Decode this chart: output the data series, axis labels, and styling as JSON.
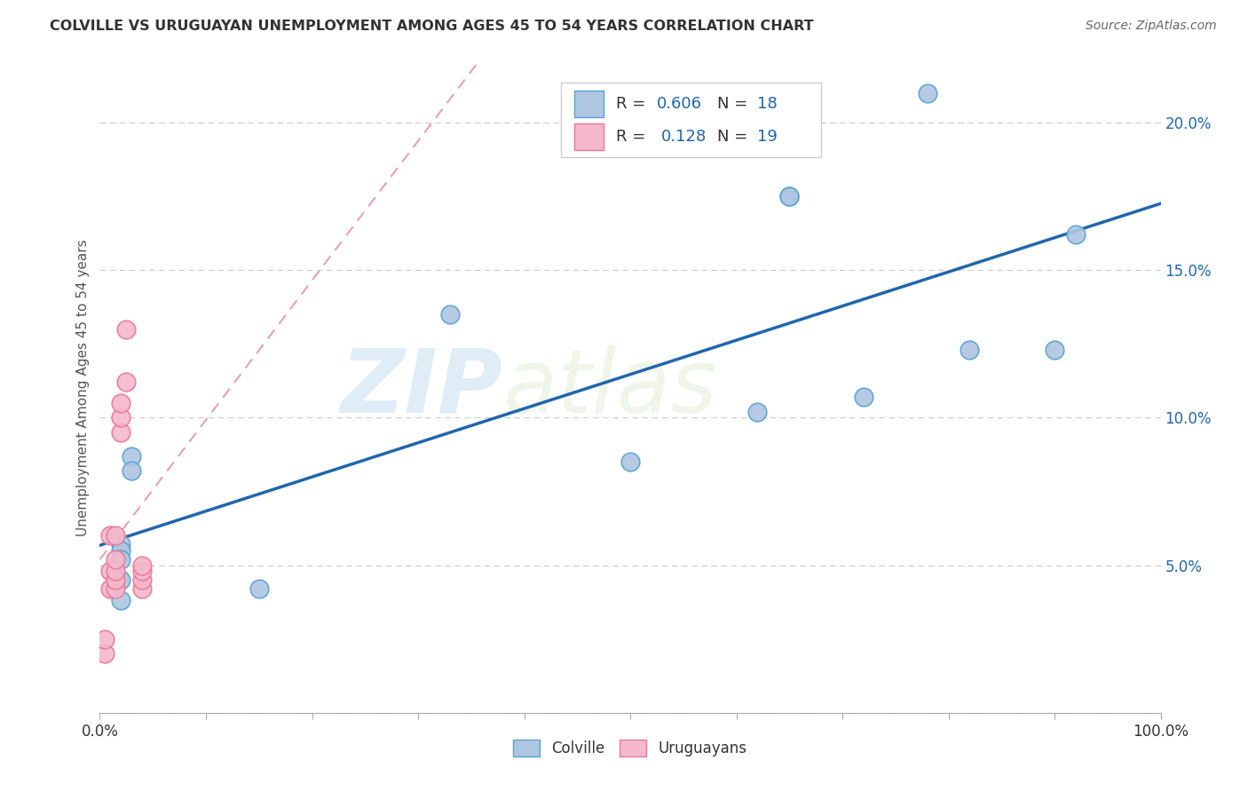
{
  "title": "COLVILLE VS URUGUAYAN UNEMPLOYMENT AMONG AGES 45 TO 54 YEARS CORRELATION CHART",
  "source": "Source: ZipAtlas.com",
  "ylabel": "Unemployment Among Ages 45 to 54 years",
  "xlim": [
    0,
    1.0
  ],
  "ylim": [
    0,
    0.22
  ],
  "xticks": [
    0.0,
    0.1,
    0.2,
    0.3,
    0.4,
    0.5,
    0.6,
    0.7,
    0.8,
    0.9,
    1.0
  ],
  "yticks": [
    0.0,
    0.05,
    0.1,
    0.15,
    0.2
  ],
  "colville_x": [
    0.02,
    0.02,
    0.02,
    0.02,
    0.02,
    0.03,
    0.03,
    0.15,
    0.33,
    0.5,
    0.62,
    0.65,
    0.72,
    0.78,
    0.82,
    0.9,
    0.92,
    0.65
  ],
  "colville_y": [
    0.057,
    0.055,
    0.052,
    0.045,
    0.038,
    0.087,
    0.082,
    0.042,
    0.135,
    0.085,
    0.102,
    0.175,
    0.107,
    0.21,
    0.123,
    0.123,
    0.162,
    0.175
  ],
  "uruguayan_x": [
    0.005,
    0.005,
    0.01,
    0.01,
    0.01,
    0.015,
    0.015,
    0.015,
    0.015,
    0.015,
    0.02,
    0.02,
    0.02,
    0.025,
    0.025,
    0.04,
    0.04,
    0.04,
    0.04
  ],
  "uruguayan_y": [
    0.02,
    0.025,
    0.042,
    0.048,
    0.06,
    0.042,
    0.045,
    0.048,
    0.052,
    0.06,
    0.095,
    0.1,
    0.105,
    0.112,
    0.13,
    0.042,
    0.045,
    0.048,
    0.05
  ],
  "colville_face_color": "#aec6e0",
  "colville_edge_color": "#5a9fd4",
  "uruguayan_face_color": "#f4b8cb",
  "uruguayan_edge_color": "#e87898",
  "colville_line_color": "#2166ac",
  "uruguayan_line_color": "#e8a0b0",
  "R_colville": 0.606,
  "N_colville": 18,
  "R_uruguayan": 0.128,
  "N_uruguayan": 19,
  "watermark_zip": "ZIP",
  "watermark_atlas": "atlas",
  "background_color": "#ffffff",
  "grid_color": "#cccccc",
  "tick_color": "#2166ac",
  "title_color": "#333333",
  "source_color": "#666666"
}
